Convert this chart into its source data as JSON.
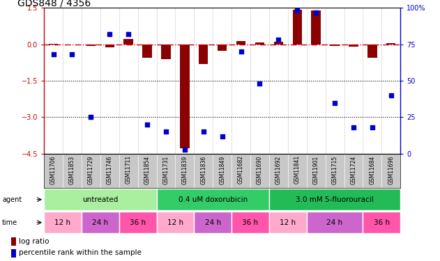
{
  "title": "GDS848 / 4356",
  "samples": [
    "GSM11706",
    "GSM11853",
    "GSM11729",
    "GSM11746",
    "GSM11711",
    "GSM11854",
    "GSM11731",
    "GSM11839",
    "GSM11836",
    "GSM11849",
    "GSM11682",
    "GSM11690",
    "GSM11692",
    "GSM11841",
    "GSM11901",
    "GSM11715",
    "GSM11724",
    "GSM11684",
    "GSM11696"
  ],
  "log_ratio": [
    0.02,
    -0.02,
    -0.08,
    -0.12,
    0.22,
    -0.55,
    -0.62,
    -4.28,
    -0.82,
    -0.28,
    0.14,
    0.07,
    0.1,
    1.42,
    1.4,
    -0.07,
    -0.09,
    -0.55,
    0.04
  ],
  "percentile": [
    68,
    68,
    25,
    82,
    82,
    20,
    15,
    3,
    15,
    12,
    70,
    48,
    78,
    98,
    97,
    35,
    18,
    18,
    40
  ],
  "ylim_left": [
    -4.5,
    1.5
  ],
  "ylim_right": [
    0,
    100
  ],
  "yticks_left": [
    -4.5,
    -3.0,
    -1.5,
    0.0,
    1.5
  ],
  "yticks_right": [
    0,
    25,
    50,
    75,
    100
  ],
  "bar_color": "#8B0000",
  "dot_color": "#0000CD",
  "zero_line_color": "#CC0000",
  "dotted_line_color": "#000000",
  "agent_groups": [
    {
      "label": "untreated",
      "start": 0,
      "end": 6,
      "color": "#AAEEA0"
    },
    {
      "label": "0.4 uM doxorubicin",
      "start": 6,
      "end": 12,
      "color": "#33CC66"
    },
    {
      "label": "3.0 mM 5-fluorouracil",
      "start": 12,
      "end": 19,
      "color": "#22BB55"
    }
  ],
  "time_groups": [
    {
      "label": "12 h",
      "start": 0,
      "end": 2,
      "color": "#FFAACC"
    },
    {
      "label": "24 h",
      "start": 2,
      "end": 4,
      "color": "#CC66CC"
    },
    {
      "label": "36 h",
      "start": 4,
      "end": 6,
      "color": "#FF55AA"
    },
    {
      "label": "12 h",
      "start": 6,
      "end": 8,
      "color": "#FFAACC"
    },
    {
      "label": "24 h",
      "start": 8,
      "end": 10,
      "color": "#CC66CC"
    },
    {
      "label": "36 h",
      "start": 10,
      "end": 12,
      "color": "#FF55AA"
    },
    {
      "label": "12 h",
      "start": 12,
      "end": 14,
      "color": "#FFAACC"
    },
    {
      "label": "24 h",
      "start": 14,
      "end": 17,
      "color": "#CC66CC"
    },
    {
      "label": "36 h",
      "start": 17,
      "end": 19,
      "color": "#FF55AA"
    }
  ],
  "legend_log_ratio_color": "#8B0000",
  "legend_percentile_color": "#0000CD",
  "sample_band_color": "#C8C8C8"
}
